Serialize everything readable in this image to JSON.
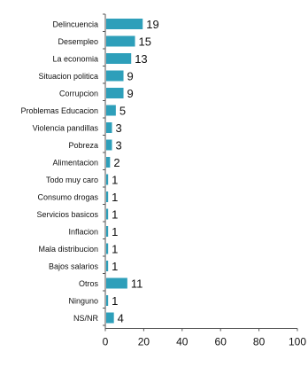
{
  "chart_data": {
    "type": "bar",
    "orientation": "horizontal",
    "title": "",
    "xlabel": "",
    "ylabel": "",
    "xlim": [
      0,
      100
    ],
    "x_ticks": [
      0,
      20,
      40,
      60,
      80,
      100
    ],
    "grid": false,
    "legend": "none",
    "bar_color": "#2e9fba",
    "categories": [
      "Delincuencia",
      "Desempleo",
      "La economia",
      "Situacion politica",
      "Corrupcion",
      "Problemas Educacion",
      "Violencia pandillas",
      "Pobreza",
      "Alimentacion",
      "Todo muy caro",
      "Consumo drogas",
      "Servicios basicos",
      "Inflacion",
      "Mala distribucion",
      "Bajos salarios",
      "Otros",
      "Ninguno",
      "NS/NR"
    ],
    "values": [
      19,
      15,
      13,
      9,
      9,
      5,
      3,
      3,
      2,
      1,
      1,
      1,
      1,
      1,
      1,
      11,
      1,
      4
    ]
  }
}
